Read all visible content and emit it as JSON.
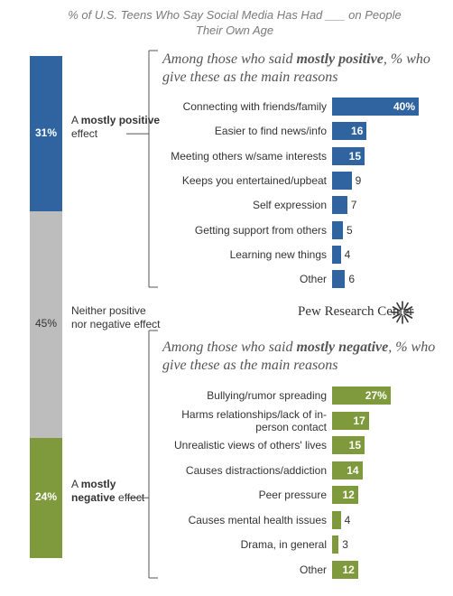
{
  "title": "% of U.S. Teens Who Say Social Media Has Had ___ on People Their Own Age",
  "source": "Pew Research Center",
  "chart_data": [
    {
      "type": "bar",
      "orientation": "vertical-stacked",
      "categories": [
        "A mostly positive effect",
        "Neither positive nor negative effect",
        "A mostly negative effect"
      ],
      "values": [
        31,
        45,
        24
      ],
      "value_labels": [
        "31%",
        "45%",
        "24%"
      ],
      "label_parts": [
        {
          "pre": "A ",
          "bold": "mostly positive",
          "post": " effect"
        },
        {
          "pre": "Neither positive nor negative effect",
          "bold": "",
          "post": ""
        },
        {
          "pre": "A ",
          "bold": "mostly negative",
          "post": " effect"
        }
      ],
      "colors": [
        "#2f64a0",
        "#bdbdbd",
        "#7f9a3c"
      ]
    },
    {
      "type": "bar",
      "orientation": "horizontal",
      "subtitle_pre": "Among those who said ",
      "subtitle_bold": "mostly positive",
      "subtitle_post": ", % who give these as the main reasons",
      "categories": [
        "Connecting with friends/family",
        "Easier to find news/info",
        "Meeting others w/same interests",
        "Keeps you entertained/upbeat",
        "Self expression",
        "Getting support from others",
        "Learning new things",
        "Other"
      ],
      "values": [
        40,
        16,
        15,
        9,
        7,
        5,
        4,
        6
      ],
      "value_labels": [
        "40%",
        "16",
        "15",
        "9",
        "7",
        "5",
        "4",
        "6"
      ],
      "color": "#2f64a0"
    },
    {
      "type": "bar",
      "orientation": "horizontal",
      "subtitle_pre": "Among those who said ",
      "subtitle_bold": "mostly negative",
      "subtitle_post": ", % who give these as the main reasons",
      "categories": [
        "Bullying/rumor spreading",
        "Harms relationships/lack of in-person contact",
        "Unrealistic views of others' lives",
        "Causes distractions/addiction",
        "Peer pressure",
        "Causes mental health issues",
        "Drama, in general",
        "Other"
      ],
      "values": [
        27,
        17,
        15,
        14,
        12,
        4,
        3,
        12
      ],
      "value_labels": [
        "27%",
        "17",
        "15",
        "14",
        "12",
        "4",
        "3",
        "12"
      ],
      "color": "#7f9a3c"
    }
  ]
}
